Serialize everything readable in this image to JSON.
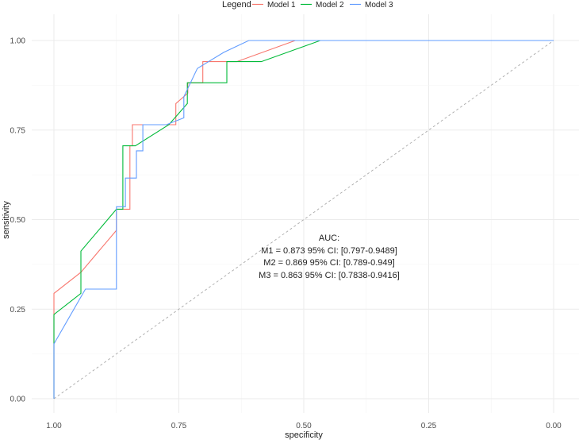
{
  "chart_data": {
    "type": "line",
    "xlabel": "specificity",
    "ylabel": "sensitivity",
    "x_reversed": true,
    "xlim": [
      1.0,
      0.0
    ],
    "ylim": [
      0.0,
      1.0
    ],
    "x_ticks": [
      1.0,
      0.75,
      0.5,
      0.25,
      0.0
    ],
    "x_tick_labels": [
      "1.00",
      "0.75",
      "0.50",
      "0.25",
      "0.00"
    ],
    "y_ticks": [
      0.0,
      0.25,
      0.5,
      0.75,
      1.0
    ],
    "y_tick_labels": [
      "0.00",
      "0.25",
      "0.50",
      "0.75",
      "1.00"
    ],
    "grid": true,
    "legend": {
      "title": "Legend",
      "position": "top",
      "entries": [
        "Model 1",
        "Model 2",
        "Model 3"
      ]
    },
    "series": [
      {
        "name": "Model 1",
        "color": "#F8766D",
        "x": [
          1.0,
          1.0,
          0.946,
          0.875,
          0.875,
          0.848,
          0.848,
          0.843,
          0.843,
          0.756,
          0.756,
          0.732,
          0.732,
          0.702,
          0.702,
          0.634,
          0.517
        ],
        "y": [
          0.0,
          0.294,
          0.353,
          0.47,
          0.529,
          0.529,
          0.706,
          0.706,
          0.765,
          0.765,
          0.824,
          0.853,
          0.882,
          0.882,
          0.941,
          0.941,
          1.0
        ]
      },
      {
        "name": "Model 2",
        "color": "#00BA38",
        "x": [
          1.0,
          1.0,
          0.946,
          0.946,
          0.875,
          0.862,
          0.862,
          0.837,
          0.77,
          0.733,
          0.733,
          0.718,
          0.718,
          0.654,
          0.654,
          0.585,
          0.467,
          0.0
        ],
        "y": [
          0.0,
          0.235,
          0.294,
          0.412,
          0.529,
          0.529,
          0.706,
          0.706,
          0.765,
          0.824,
          0.882,
          0.882,
          0.882,
          0.882,
          0.941,
          0.941,
          1.0,
          1.0
        ]
      },
      {
        "name": "Model 3",
        "color": "#619CFF",
        "x": [
          1.0,
          1.0,
          0.937,
          0.937,
          0.875,
          0.875,
          0.857,
          0.857,
          0.835,
          0.835,
          0.822,
          0.822,
          0.775,
          0.74,
          0.74,
          0.74,
          0.713,
          0.66,
          0.61,
          0.0
        ],
        "y": [
          0.0,
          0.153,
          0.306,
          0.306,
          0.306,
          0.536,
          0.536,
          0.616,
          0.616,
          0.692,
          0.692,
          0.765,
          0.765,
          0.784,
          0.784,
          0.843,
          0.922,
          0.967,
          1.0,
          1.0
        ]
      }
    ],
    "reference_line": {
      "x": [
        1.0,
        0.0
      ],
      "y": [
        0.0,
        1.0
      ],
      "color": "#aaaaaa",
      "style": "dashed"
    },
    "annotation": {
      "title": "AUC:",
      "lines": [
        "M1 = 0.873 95% CI: [0.797-0.9489]",
        "M2 = 0.869 95% CI: [0.789-0.949]",
        "M3 = 0.863 95% CI: [0.7838-0.9416]"
      ],
      "x": 0.45,
      "y": 0.5
    }
  }
}
